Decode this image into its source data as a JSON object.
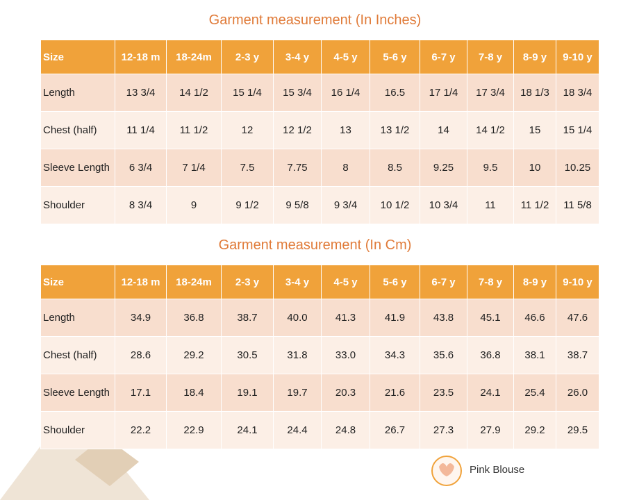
{
  "tables": [
    {
      "title": "Garment measurement (In Inches)",
      "header": [
        "Size",
        "12-18 m",
        "18-24m",
        "2-3 y",
        "3-4 y",
        "4-5 y",
        "5-6 y",
        "6-7 y",
        "7-8 y",
        "8-9 y",
        "9-10 y"
      ],
      "rows": [
        [
          "Length",
          "13 3/4",
          "14 1/2",
          "15 1/4",
          "15 3/4",
          "16 1/4",
          "16.5",
          "17 1/4",
          "17 3/4",
          "18 1/3",
          "18 3/4"
        ],
        [
          "Chest (half)",
          "11 1/4",
          "11 1/2",
          "12",
          "12 1/2",
          "13",
          "13 1/2",
          "14",
          "14 1/2",
          "15",
          "15 1/4"
        ],
        [
          "Sleeve Length",
          "6 3/4",
          "7 1/4",
          "7.5",
          "7.75",
          "8",
          "8.5",
          "9.25",
          "9.5",
          "10",
          "10.25"
        ],
        [
          "Shoulder",
          "8 3/4",
          "9",
          "9 1/2",
          "9 5/8",
          "9 3/4",
          "10 1/2",
          "10 3/4",
          "11",
          "11 1/2",
          "11 5/8"
        ]
      ]
    },
    {
      "title": "Garment measurement (In Cm)",
      "header": [
        "Size",
        "12-18 m",
        "18-24m",
        "2-3 y",
        "3-4 y",
        "4-5 y",
        "5-6 y",
        "6-7 y",
        "7-8 y",
        "8-9 y",
        "9-10 y"
      ],
      "rows": [
        [
          "Length",
          "34.9",
          "36.8",
          "38.7",
          "40.0",
          "41.3",
          "41.9",
          "43.8",
          "45.1",
          "46.6",
          "47.6"
        ],
        [
          "Chest (half)",
          "28.6",
          "29.2",
          "30.5",
          "31.8",
          "33.0",
          "34.3",
          "35.6",
          "36.8",
          "38.1",
          "38.7"
        ],
        [
          "Sleeve Length",
          "17.1",
          "18.4",
          "19.1",
          "19.7",
          "20.3",
          "21.6",
          "23.5",
          "24.1",
          "25.4",
          "26.0"
        ],
        [
          "Shoulder",
          "22.2",
          "22.9",
          "24.1",
          "24.4",
          "24.8",
          "26.7",
          "27.3",
          "27.9",
          "29.2",
          "29.5"
        ]
      ]
    }
  ],
  "logo": {
    "text": "Pink Blouse"
  }
}
